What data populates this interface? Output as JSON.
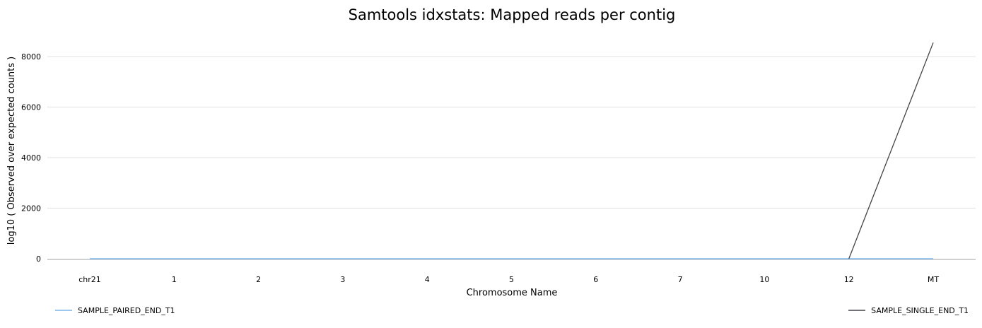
{
  "chart_data": {
    "type": "line",
    "title": "Samtools idxstats: Mapped reads per contig",
    "xlabel": "Chromosome Name",
    "ylabel": "log10 ( Observed over expected counts )",
    "categories": [
      "chr21",
      "1",
      "2",
      "3",
      "4",
      "5",
      "6",
      "7",
      "10",
      "12",
      "MT"
    ],
    "ylim": [
      0,
      8000
    ],
    "yticks": [
      0,
      2000,
      4000,
      6000,
      8000
    ],
    "grid": true,
    "series": [
      {
        "name": "SAMPLE_PAIRED_END_T1",
        "color": "#7cb5ec",
        "values": [
          0,
          0,
          0,
          0,
          0,
          0,
          0,
          0,
          0,
          0,
          0
        ]
      },
      {
        "name": "SAMPLE_SINGLE_END_T1",
        "color": "#434348",
        "values": [
          null,
          null,
          null,
          null,
          null,
          null,
          null,
          null,
          null,
          0,
          8550
        ]
      }
    ],
    "legend_placement": "bottom"
  }
}
